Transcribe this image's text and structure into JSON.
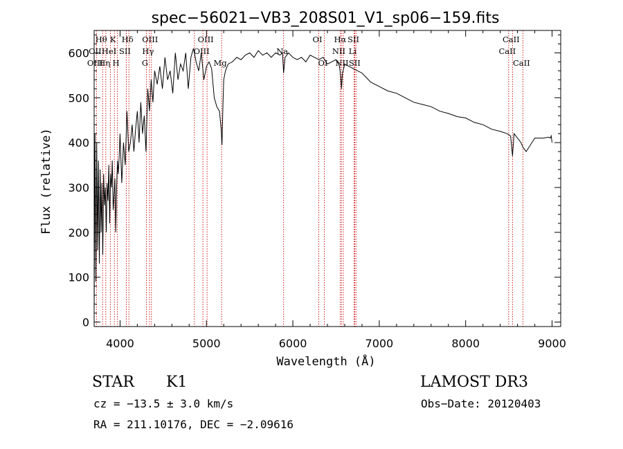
{
  "chart_data": {
    "type": "line",
    "title": "spec−56021−VB3_208S01_V1_sp06−159.fits",
    "xlabel": "Wavelength (Å)",
    "ylabel": "Flux (relative)",
    "xlim": [
      3700,
      9100
    ],
    "ylim": [
      -10,
      650
    ],
    "xticks": [
      4000,
      5000,
      6000,
      7000,
      8000,
      9000
    ],
    "yticks": [
      0,
      100,
      200,
      300,
      400,
      500,
      600
    ],
    "series": [
      {
        "name": "spectrum",
        "x": [
          3700,
          3710,
          3720,
          3730,
          3740,
          3750,
          3760,
          3770,
          3780,
          3790,
          3800,
          3810,
          3820,
          3830,
          3840,
          3850,
          3860,
          3870,
          3880,
          3890,
          3900,
          3910,
          3920,
          3930,
          3940,
          3950,
          3960,
          3970,
          3980,
          3990,
          4000,
          4020,
          4040,
          4060,
          4080,
          4100,
          4120,
          4140,
          4160,
          4180,
          4200,
          4220,
          4240,
          4260,
          4280,
          4300,
          4320,
          4340,
          4360,
          4380,
          4400,
          4430,
          4460,
          4490,
          4520,
          4550,
          4580,
          4610,
          4640,
          4670,
          4700,
          4730,
          4760,
          4790,
          4820,
          4850,
          4880,
          4910,
          4940,
          4970,
          5000,
          5030,
          5060,
          5090,
          5120,
          5150,
          5170,
          5180,
          5190,
          5200,
          5220,
          5250,
          5300,
          5350,
          5400,
          5450,
          5500,
          5550,
          5600,
          5650,
          5700,
          5750,
          5800,
          5850,
          5880,
          5893,
          5910,
          5950,
          6000,
          6050,
          6100,
          6150,
          6200,
          6250,
          6300,
          6350,
          6400,
          6450,
          6500,
          6540,
          6555,
          6563,
          6575,
          6600,
          6650,
          6700,
          6750,
          6800,
          6850,
          6900,
          6950,
          7000,
          7100,
          7200,
          7300,
          7400,
          7500,
          7600,
          7700,
          7800,
          7900,
          8000,
          8100,
          8200,
          8300,
          8400,
          8480,
          8520,
          8542,
          8560,
          8600,
          8640,
          8662,
          8700,
          8800,
          8900,
          8960,
          8980,
          8990,
          9000
        ],
        "values": [
          20,
          420,
          90,
          400,
          160,
          360,
          130,
          340,
          200,
          310,
          150,
          330,
          260,
          300,
          200,
          310,
          270,
          350,
          220,
          330,
          300,
          360,
          250,
          280,
          320,
          200,
          300,
          360,
          330,
          370,
          420,
          310,
          400,
          350,
          470,
          380,
          400,
          440,
          380,
          430,
          470,
          400,
          490,
          420,
          460,
          380,
          520,
          470,
          540,
          490,
          560,
          530,
          570,
          520,
          590,
          540,
          560,
          510,
          600,
          540,
          575,
          560,
          600,
          520,
          590,
          610,
          580,
          560,
          600,
          540,
          570,
          580,
          565,
          500,
          480,
          470,
          430,
          395,
          480,
          540,
          560,
          575,
          580,
          590,
          585,
          595,
          600,
          590,
          605,
          595,
          600,
          590,
          600,
          595,
          600,
          555,
          590,
          600,
          590,
          585,
          590,
          580,
          595,
          590,
          585,
          590,
          575,
          580,
          585,
          570,
          545,
          520,
          555,
          575,
          570,
          565,
          560,
          555,
          545,
          535,
          530,
          525,
          515,
          510,
          500,
          490,
          485,
          480,
          470,
          465,
          458,
          455,
          445,
          440,
          430,
          425,
          420,
          415,
          370,
          420,
          410,
          400,
          390,
          380,
          410,
          410,
          412,
          410,
          415,
          400
        ]
      }
    ],
    "line_labels": [
      {
        "label": "Hθ",
        "row": 1,
        "x": 3798
      },
      {
        "label": "OII",
        "row": 2,
        "x": 3727
      },
      {
        "label": "OIII",
        "row": 3,
        "x": 3727
      },
      {
        "label": "K",
        "row": 1,
        "x": 3934
      },
      {
        "label": "HeI",
        "row": 2,
        "x": 3889
      },
      {
        "label": "Hη",
        "row": 3,
        "x": 3835
      },
      {
        "label": "H",
        "row": 3,
        "x": 3969
      },
      {
        "label": "Hδ",
        "row": 1,
        "x": 4102
      },
      {
        "label": "SII",
        "row": 2,
        "x": 4072
      },
      {
        "label": "OIII",
        "row": 1,
        "x": 4363
      },
      {
        "label": "Hγ",
        "row": 2,
        "x": 4340
      },
      {
        "label": "G",
        "row": 3,
        "x": 4305
      },
      {
        "label": "OIII",
        "row": 1,
        "x": 5007
      },
      {
        "label": "OIII",
        "row": 2,
        "x": 4959
      },
      {
        "label": "Mg",
        "row": 3,
        "x": 5175
      },
      {
        "label": "Na",
        "row": 2,
        "x": 5893
      },
      {
        "label": "OI",
        "row": 1,
        "x": 6300
      },
      {
        "label": "OI",
        "row": 3,
        "x": 6364
      },
      {
        "label": "Hα",
        "row": 1,
        "x": 6563
      },
      {
        "label": "SII",
        "row": 1,
        "x": 6717
      },
      {
        "label": "NII",
        "row": 2,
        "x": 6548
      },
      {
        "label": "Li",
        "row": 2,
        "x": 6708
      },
      {
        "label": "NII",
        "row": 3,
        "x": 6584
      },
      {
        "label": "SII",
        "row": 3,
        "x": 6731
      },
      {
        "label": "CaII",
        "row": 1,
        "x": 8542
      },
      {
        "label": "CaII",
        "row": 2,
        "x": 8498
      },
      {
        "label": "CaII",
        "row": 3,
        "x": 8662
      }
    ],
    "line_markers": [
      3727,
      3798,
      3835,
      3889,
      3934,
      3969,
      4072,
      4102,
      4305,
      4340,
      4363,
      4861,
      4959,
      5007,
      5175,
      5893,
      6300,
      6364,
      6548,
      6563,
      6584,
      6708,
      6717,
      6731,
      8498,
      8542,
      8662
    ]
  },
  "annotations": {
    "object_class": "STAR",
    "subclass": "K1",
    "survey": "LAMOST DR3",
    "cz": "cz = −13.5 ± 3.0 km/s",
    "obs_date": "Obs−Date: 20120403",
    "coords": "RA = 211.10176, DEC =  −2.09616"
  },
  "colors": {
    "spectrum": "#000000",
    "line_marker": "#cc0000",
    "axes": "#000000"
  }
}
